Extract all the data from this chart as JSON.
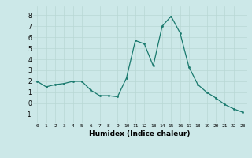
{
  "x": [
    0,
    1,
    2,
    3,
    4,
    5,
    6,
    7,
    8,
    9,
    10,
    11,
    12,
    13,
    14,
    15,
    16,
    17,
    18,
    19,
    20,
    21,
    22,
    23
  ],
  "y": [
    2.0,
    1.5,
    1.7,
    1.8,
    2.0,
    2.0,
    1.2,
    0.7,
    0.7,
    0.6,
    2.3,
    5.7,
    5.4,
    3.4,
    7.0,
    7.9,
    6.4,
    3.3,
    1.7,
    1.0,
    0.5,
    -0.1,
    -0.5,
    -0.8
  ],
  "xlabel": "Humidex (Indice chaleur)",
  "ylim": [
    -1.8,
    8.8
  ],
  "xlim": [
    -0.5,
    23.5
  ],
  "yticks": [
    -1,
    0,
    1,
    2,
    3,
    4,
    5,
    6,
    7,
    8
  ],
  "xticks": [
    0,
    1,
    2,
    3,
    4,
    5,
    6,
    7,
    8,
    9,
    10,
    11,
    12,
    13,
    14,
    15,
    16,
    17,
    18,
    19,
    20,
    21,
    22,
    23
  ],
  "line_color": "#1a7a6e",
  "marker_color": "#1a7a6e",
  "bg_color": "#cce8e8",
  "grid_major_color": "#b8d8d4",
  "grid_minor_color": "#d8ecec"
}
